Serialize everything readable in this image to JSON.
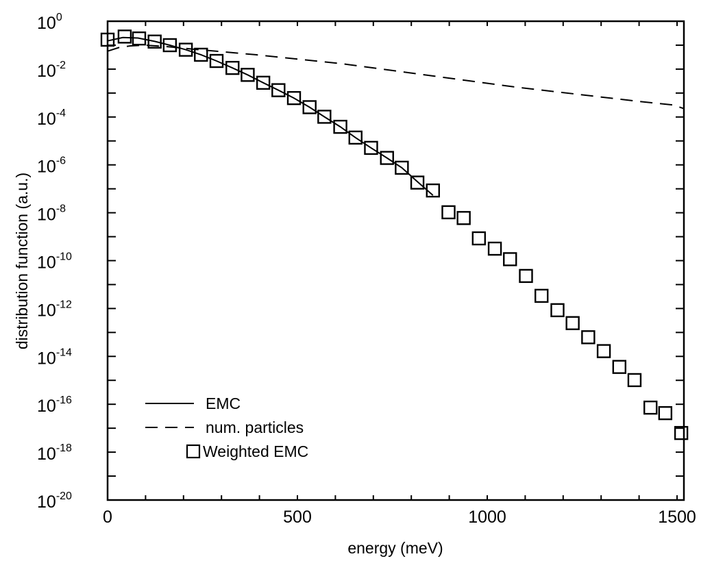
{
  "chart_data": {
    "type": "line",
    "title": "",
    "xlabel": "energy (meV)",
    "ylabel": "distribution function (a.u.)",
    "xlim": [
      0,
      1518
    ],
    "ylim_log10": [
      -20,
      0
    ],
    "yscale": "log",
    "xticks": [
      0,
      500,
      1000,
      1500
    ],
    "xtick_labels": [
      "0",
      "500",
      "1000",
      "1500"
    ],
    "xminor_step": 100,
    "yticks_log10": [
      0,
      -2,
      -4,
      -6,
      -8,
      -10,
      -12,
      -14,
      -16,
      -18,
      -20
    ],
    "ytick_base": "10",
    "ytick_exponents": [
      "0",
      "-2",
      "-4",
      "-6",
      "-8",
      "-10",
      "-12",
      "-14",
      "-16",
      "-18",
      "-20"
    ],
    "grid": false,
    "legend_position": "bottom-left",
    "series": [
      {
        "name": "EMC",
        "style": "solid",
        "x": [
          0,
          40,
          80,
          124,
          164,
          206,
          246,
          287,
          329,
          369,
          410,
          450,
          491,
          532,
          571,
          613,
          653,
          694,
          736,
          775,
          816,
          857
        ],
        "log10_y": [
          -0.82,
          -0.68,
          -0.7,
          -0.84,
          -1.0,
          -1.19,
          -1.4,
          -1.66,
          -1.95,
          -2.24,
          -2.57,
          -2.88,
          -3.21,
          -3.59,
          -3.99,
          -4.41,
          -4.86,
          -5.29,
          -5.71,
          -6.12,
          -6.7,
          -7.27
        ]
      },
      {
        "name": "num. particles",
        "style": "dashed",
        "x": [
          0,
          30,
          60,
          100,
          150,
          220,
          390,
          620,
          1070,
          1400,
          1490,
          1518
        ],
        "log10_y": [
          -1.25,
          -1.1,
          -1.03,
          -1.0,
          -1.05,
          -1.16,
          -1.4,
          -1.78,
          -2.74,
          -3.35,
          -3.5,
          -3.65
        ]
      },
      {
        "name": "Weighted EMC",
        "style": "square-markers",
        "x": [
          0,
          45,
          83,
          124,
          164,
          206,
          246,
          287,
          329,
          369,
          410,
          450,
          491,
          532,
          571,
          613,
          653,
          694,
          736,
          775,
          816,
          857,
          898,
          938,
          978,
          1020,
          1060,
          1102,
          1143,
          1185,
          1225,
          1266,
          1307,
          1348,
          1388,
          1430,
          1469,
          1511
        ],
        "log10_y": [
          -0.77,
          -0.64,
          -0.72,
          -0.85,
          -1.0,
          -1.19,
          -1.4,
          -1.66,
          -1.95,
          -2.24,
          -2.57,
          -2.88,
          -3.21,
          -3.59,
          -3.99,
          -4.41,
          -4.86,
          -5.29,
          -5.71,
          -6.12,
          -6.74,
          -7.07,
          -7.98,
          -8.22,
          -9.07,
          -9.5,
          -9.94,
          -10.64,
          -11.47,
          -12.07,
          -12.61,
          -13.2,
          -13.78,
          -14.44,
          -14.99,
          -16.14,
          -16.37,
          -17.2
        ]
      }
    ]
  }
}
